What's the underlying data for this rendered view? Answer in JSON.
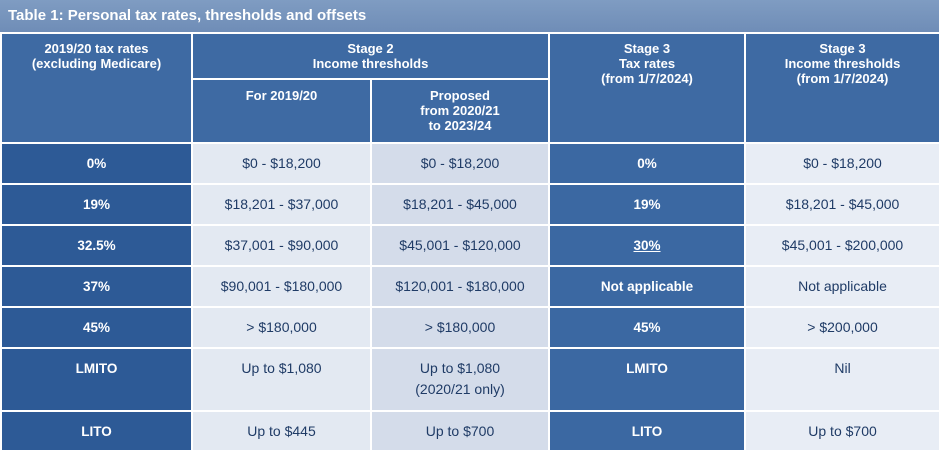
{
  "title": "Table 1: Personal tax rates, thresholds and offsets",
  "headers": {
    "col1": [
      "2019/20 tax rates",
      "(excluding Medicare)"
    ],
    "stage2": [
      "Stage 2",
      "Income thresholds"
    ],
    "stage2_sub1": "For 2019/20",
    "stage2_sub2": [
      "Proposed",
      "from 2020/21",
      "to 2023/24"
    ],
    "stage3_rates": [
      "Stage 3",
      "Tax rates",
      "(from 1/7/2024)"
    ],
    "stage3_thresholds": [
      "Stage 3",
      "Income thresholds",
      "(from 1/7/2024)"
    ]
  },
  "rows": [
    {
      "rate": "0%",
      "for_2019_20": "$0 - $18,200",
      "proposed": "$0 - $18,200",
      "s3_rate": "0%",
      "s3_threshold": "$0 - $18,200"
    },
    {
      "rate": "19%",
      "for_2019_20": "$18,201 - $37,000",
      "proposed": "$18,201 - $45,000",
      "s3_rate": "19%",
      "s3_threshold": "$18,201 - $45,000"
    },
    {
      "rate": "32.5%",
      "for_2019_20": "$37,001 - $90,000",
      "proposed": "$45,001 - $120,000",
      "s3_rate": "30%",
      "s3_threshold": "$45,001 - $200,000"
    },
    {
      "rate": "37%",
      "for_2019_20": "$90,001 - $180,000",
      "proposed": "$120,001 - $180,000",
      "s3_rate": "Not applicable",
      "s3_threshold": "Not applicable"
    },
    {
      "rate": "45%",
      "for_2019_20": "> $180,000",
      "proposed": "> $180,000",
      "s3_rate": "45%",
      "s3_threshold": "> $200,000"
    },
    {
      "rate": "LMITO",
      "for_2019_20": "Up to $1,080",
      "proposed": [
        "Up to $1,080",
        "(2020/21 only)"
      ],
      "s3_rate": "LMITO",
      "s3_threshold": "Nil"
    },
    {
      "rate": "LITO",
      "for_2019_20": "Up to $445",
      "proposed": "Up to $700",
      "s3_rate": "LITO",
      "s3_threshold": "Up to $700"
    }
  ],
  "colors": {
    "title_bar": "#7191bb",
    "header_bg": "#3e6aa3",
    "rate_bg": "#2d5a96",
    "threshold_bg": "#e3e9f2",
    "threshold_text": "#1f3b66"
  }
}
